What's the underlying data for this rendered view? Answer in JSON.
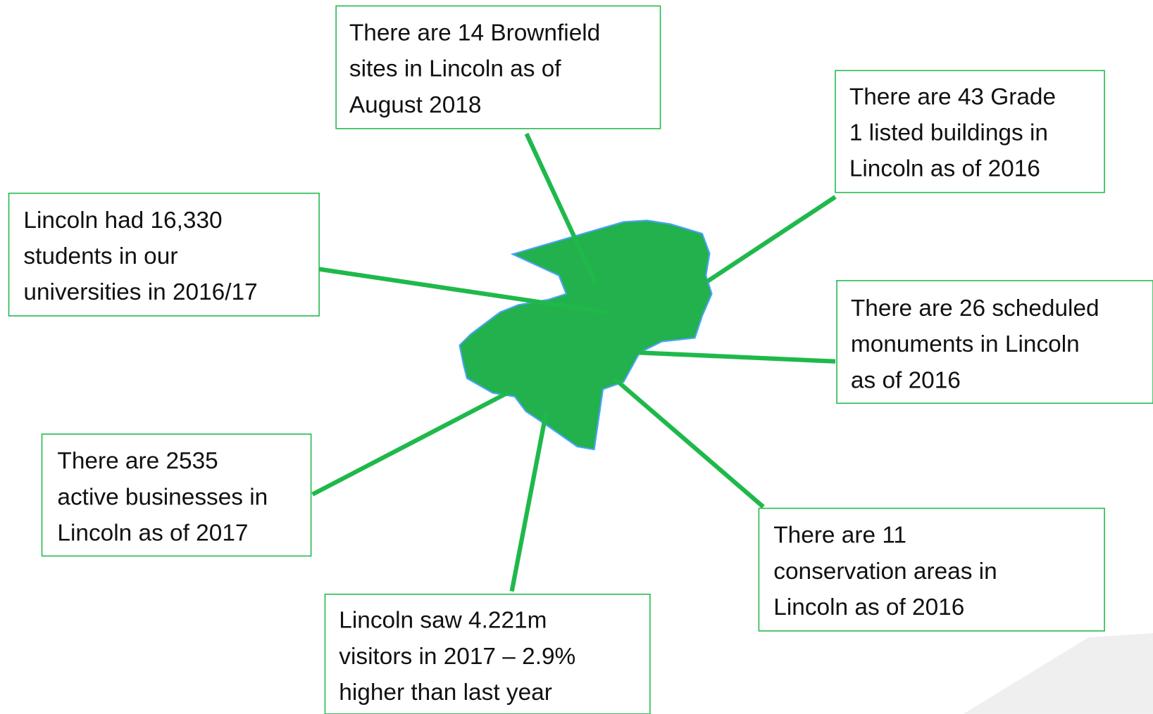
{
  "callouts": [
    {
      "lines": [
        "There are 14 Brownfield",
        "sites in Lincoln as of",
        "August 2018"
      ]
    },
    {
      "lines": [
        "There are 43 Grade",
        "1 listed buildings in",
        "Lincoln as of 2016"
      ]
    },
    {
      "lines": [
        "Lincoln had 16,330",
        "students in our",
        "universities in 2016/17"
      ]
    },
    {
      "lines": [
        "There are 26 scheduled",
        "monuments in Lincoln",
        "as of 2016"
      ]
    },
    {
      "lines": [
        "There are 2535",
        "active businesses in",
        "Lincoln as of 2017"
      ]
    },
    {
      "lines": [
        "There are 11",
        "conservation areas in",
        "Lincoln as of 2016"
      ]
    },
    {
      "lines": [
        "Lincoln saw 4.221m",
        "visitors in 2017 – 2.9%",
        "higher than last year"
      ]
    }
  ]
}
